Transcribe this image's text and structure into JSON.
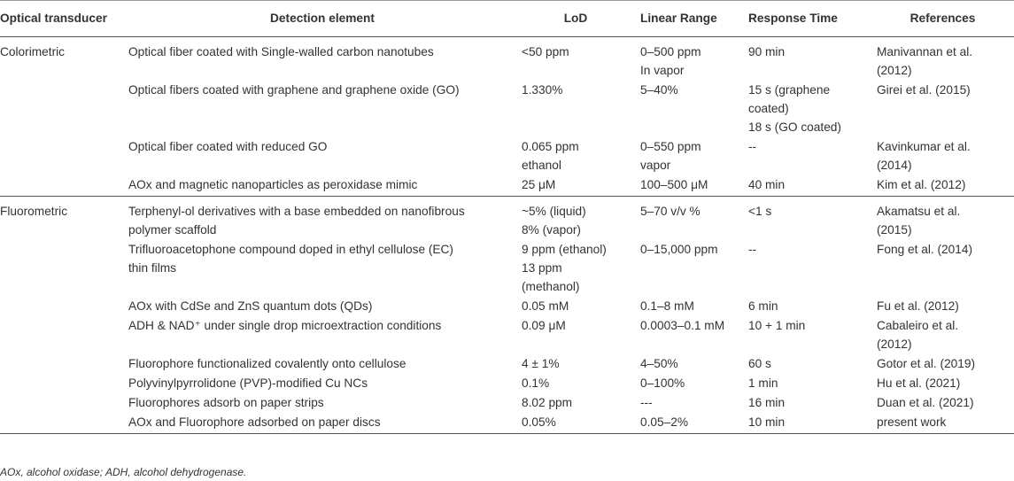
{
  "headers": [
    "Optical transducer",
    "Detection element",
    "LoD",
    "Linear Range",
    "Response Time",
    "References"
  ],
  "groups": [
    {
      "transducer": "Colorimetric",
      "rows": [
        {
          "element": [
            "Optical fiber coated with Single-walled carbon nanotubes"
          ],
          "lod": [
            "<50 ppm"
          ],
          "range": [
            "0–500 ppm",
            "In vapor"
          ],
          "time": [
            "90 min"
          ],
          "ref": [
            "Manivannan et al.",
            "(2012)"
          ]
        },
        {
          "element": [
            "Optical fibers coated with graphene and graphene oxide (GO)"
          ],
          "lod": [
            "1.330%"
          ],
          "range": [
            "5–40%"
          ],
          "time": [
            "15 s (graphene",
            "coated)",
            "18 s (GO coated)"
          ],
          "ref": [
            "Girei et al. (2015)"
          ]
        },
        {
          "element": [
            "Optical fiber coated with reduced GO"
          ],
          "lod": [
            "0.065 ppm",
            "ethanol"
          ],
          "range": [
            "0–550 ppm",
            "vapor"
          ],
          "time": [
            "--"
          ],
          "ref": [
            "Kavinkumar et al.",
            "(2014)"
          ]
        },
        {
          "element": [
            "AOx and magnetic nanoparticles as peroxidase mimic"
          ],
          "lod": [
            "25 μM"
          ],
          "range": [
            "100–500 μM"
          ],
          "time": [
            "40 min"
          ],
          "ref": [
            "Kim et al. (2012)"
          ]
        }
      ]
    },
    {
      "transducer": "Fluorometric",
      "rows": [
        {
          "element": [
            "Terphenyl-ol derivatives with a base embedded on nanofibrous",
            "polymer scaffold"
          ],
          "lod": [
            "~5% (liquid)",
            "8% (vapor)"
          ],
          "range": [
            "5–70 v/v %"
          ],
          "time": [
            "<1 s"
          ],
          "ref": [
            "Akamatsu et al.",
            "(2015)"
          ]
        },
        {
          "element": [
            "Trifluoroacetophone compound doped in ethyl cellulose (EC)",
            "thin films"
          ],
          "lod": [
            "9 ppm (ethanol)",
            "13 ppm",
            "(methanol)"
          ],
          "range": [
            "0–15,000 ppm"
          ],
          "time": [
            "--"
          ],
          "ref": [
            "Fong et al. (2014)"
          ]
        },
        {
          "element": [
            "AOx with CdSe and ZnS quantum dots (QDs)"
          ],
          "lod": [
            "0.05 mM"
          ],
          "range": [
            "0.1–8 mM"
          ],
          "time": [
            "6 min"
          ],
          "ref": [
            "Fu et al. (2012)"
          ]
        },
        {
          "element": [
            "ADH & NAD⁺ under single drop microextraction conditions"
          ],
          "lod": [
            "0.09 μM"
          ],
          "range": [
            "0.0003–0.1 mM"
          ],
          "time": [
            "10 + 1 min"
          ],
          "ref": [
            "Cabaleiro et al.",
            "(2012)"
          ]
        },
        {
          "element": [
            "Fluorophore functionalized covalently onto cellulose"
          ],
          "lod": [
            "4 ± 1%"
          ],
          "range": [
            "4–50%"
          ],
          "time": [
            "60 s"
          ],
          "ref": [
            "Gotor et al. (2019)"
          ]
        },
        {
          "element": [
            "Polyvinylpyrrolidone (PVP)-modified Cu NCs"
          ],
          "lod": [
            "0.1%"
          ],
          "range": [
            "0–100%"
          ],
          "time": [
            "1 min"
          ],
          "ref": [
            "Hu et al. (2021)"
          ]
        },
        {
          "element": [
            "Fluorophores adsorb on paper strips"
          ],
          "lod": [
            "8.02 ppm"
          ],
          "range": [
            "---"
          ],
          "time": [
            "16 min"
          ],
          "ref": [
            "Duan et al. (2021)"
          ]
        },
        {
          "element": [
            "AOx and Fluorophore adsorbed on paper discs"
          ],
          "lod": [
            "0.05%"
          ],
          "range": [
            "0.05–2%"
          ],
          "time": [
            "10 min"
          ],
          "ref": [
            "present work"
          ]
        }
      ]
    }
  ],
  "footnote": "AOx, alcohol oxidase; ADH, alcohol dehydrogenase."
}
